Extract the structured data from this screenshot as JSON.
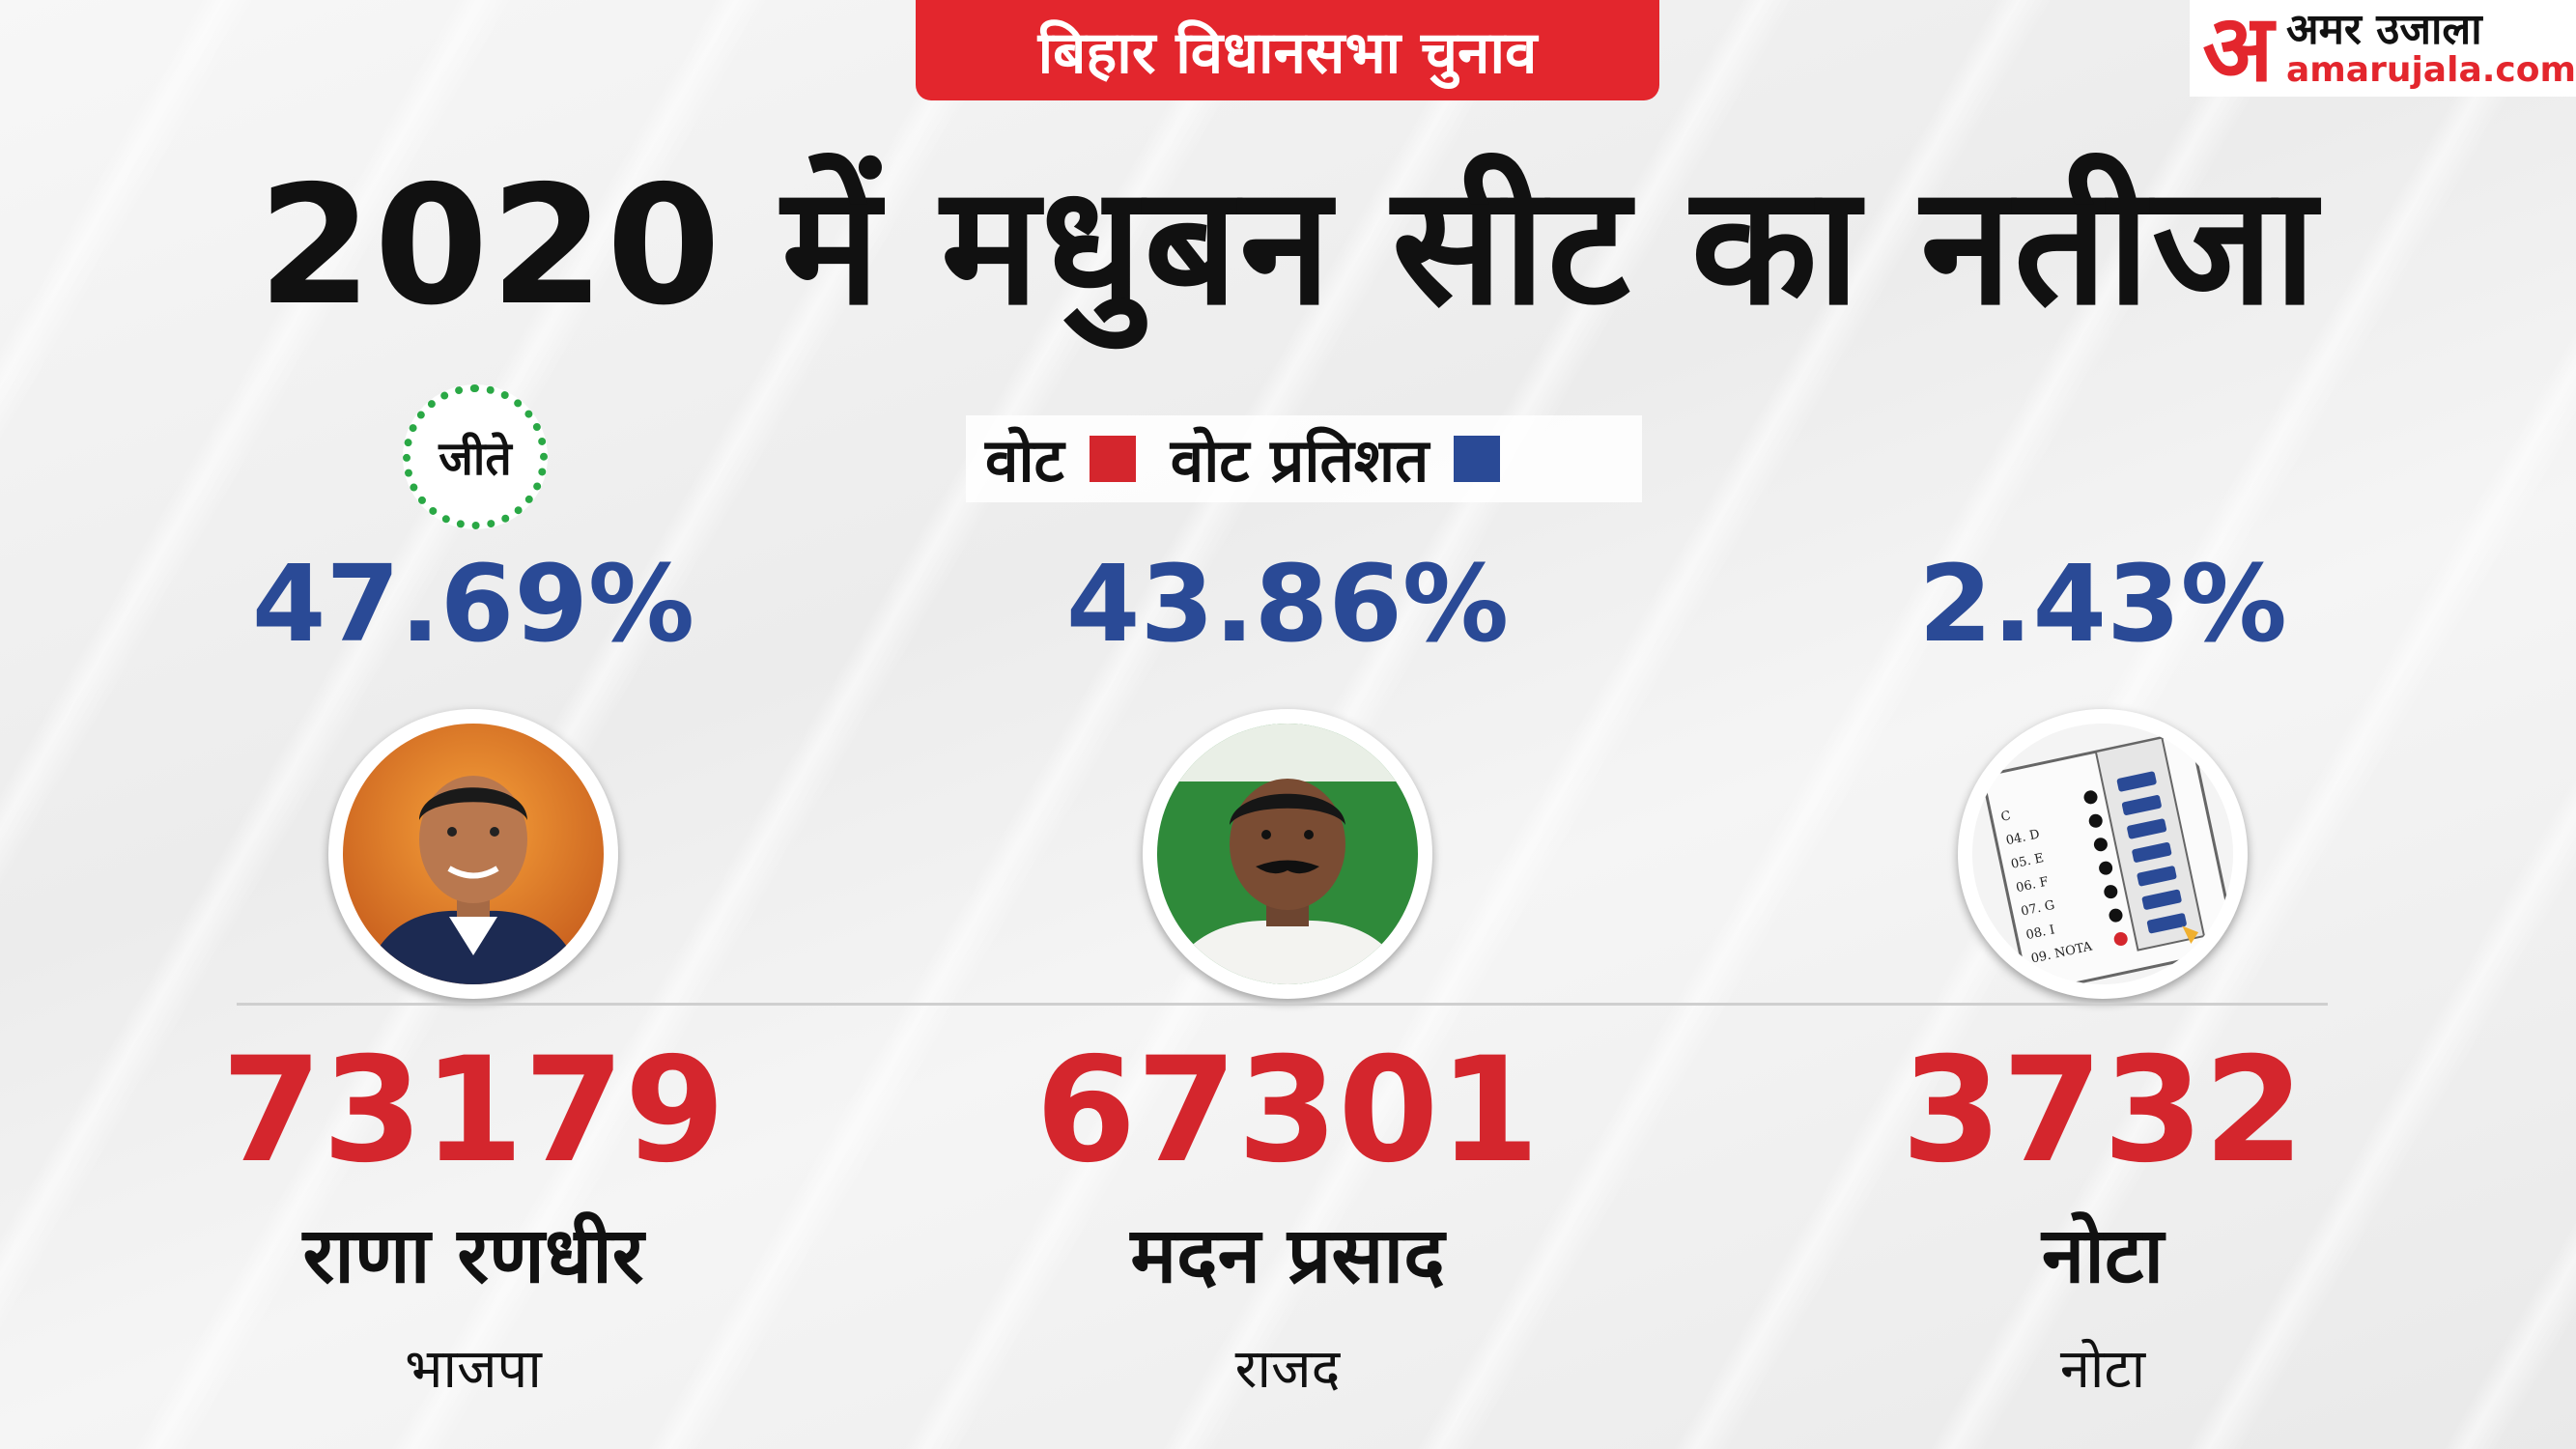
{
  "badge": "बिहार विधानसभा चुनाव",
  "brand": {
    "mark": "अ",
    "name": "अमर उजाला",
    "url": "amarujala.com"
  },
  "title": "2020 में मधुबन सीट का नतीजा",
  "legend": {
    "vote": "वोट",
    "vote_pct": "वोट प्रतिशत",
    "vote_color": "#d4262d",
    "pct_color": "#2a4a96"
  },
  "winner_label": "जीते",
  "candidates": [
    {
      "percent": "47.69%",
      "votes": "73179",
      "name": "राणा रणधीर",
      "party": "भाजपा",
      "portrait": "candidate-photo"
    },
    {
      "percent": "43.86%",
      "votes": "67301",
      "name": "मदन प्रसाद",
      "party": "राजद",
      "portrait": "candidate-photo"
    },
    {
      "percent": "2.43%",
      "votes": "3732",
      "name": "नोटा",
      "party": "नोटा",
      "portrait": "evm-icon"
    }
  ],
  "evm": {
    "rows": [
      "C",
      "04. D",
      "05. E",
      "06. F",
      "07. G",
      "08. I",
      "09. NOTA"
    ]
  }
}
